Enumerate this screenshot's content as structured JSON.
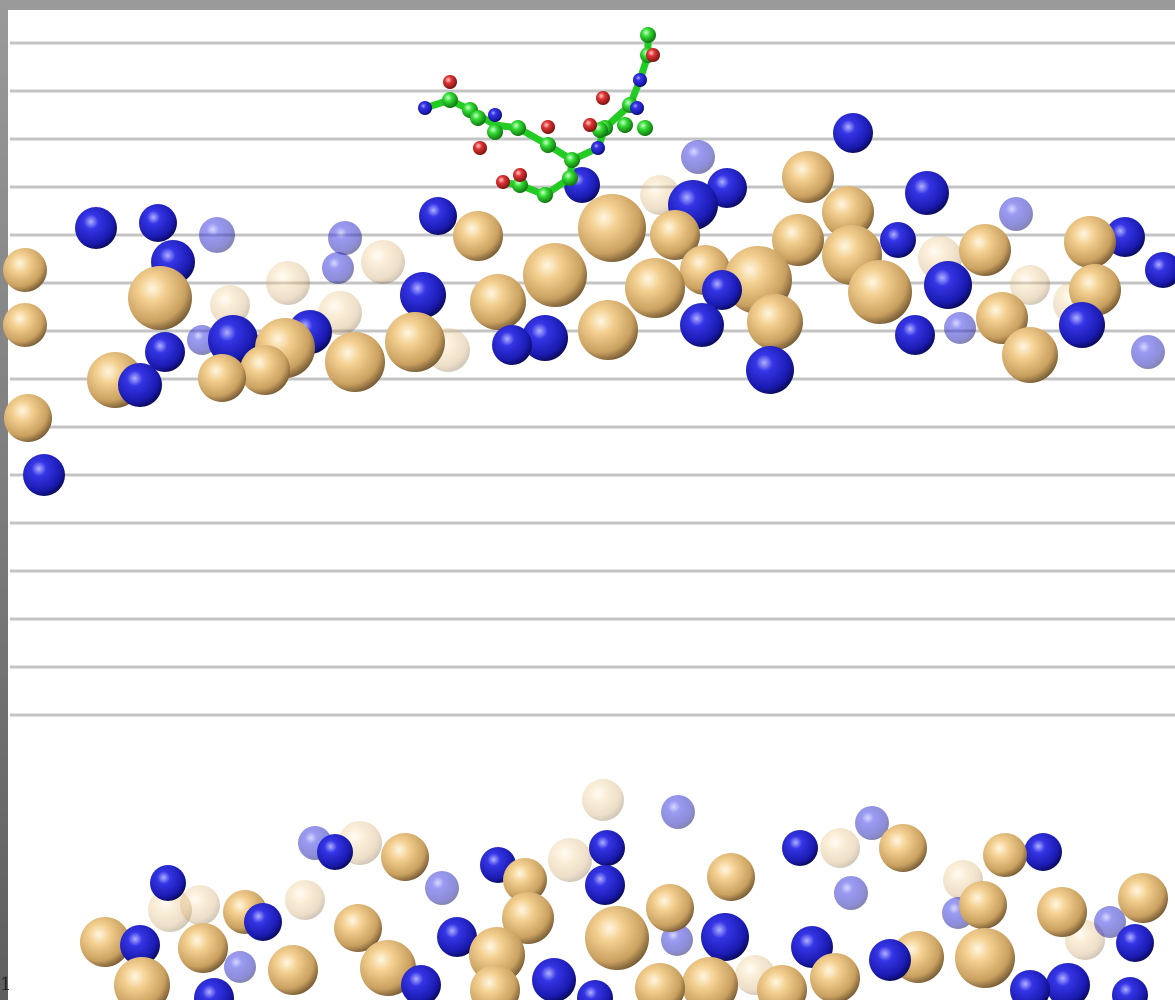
{
  "corner_label": "1"
}
